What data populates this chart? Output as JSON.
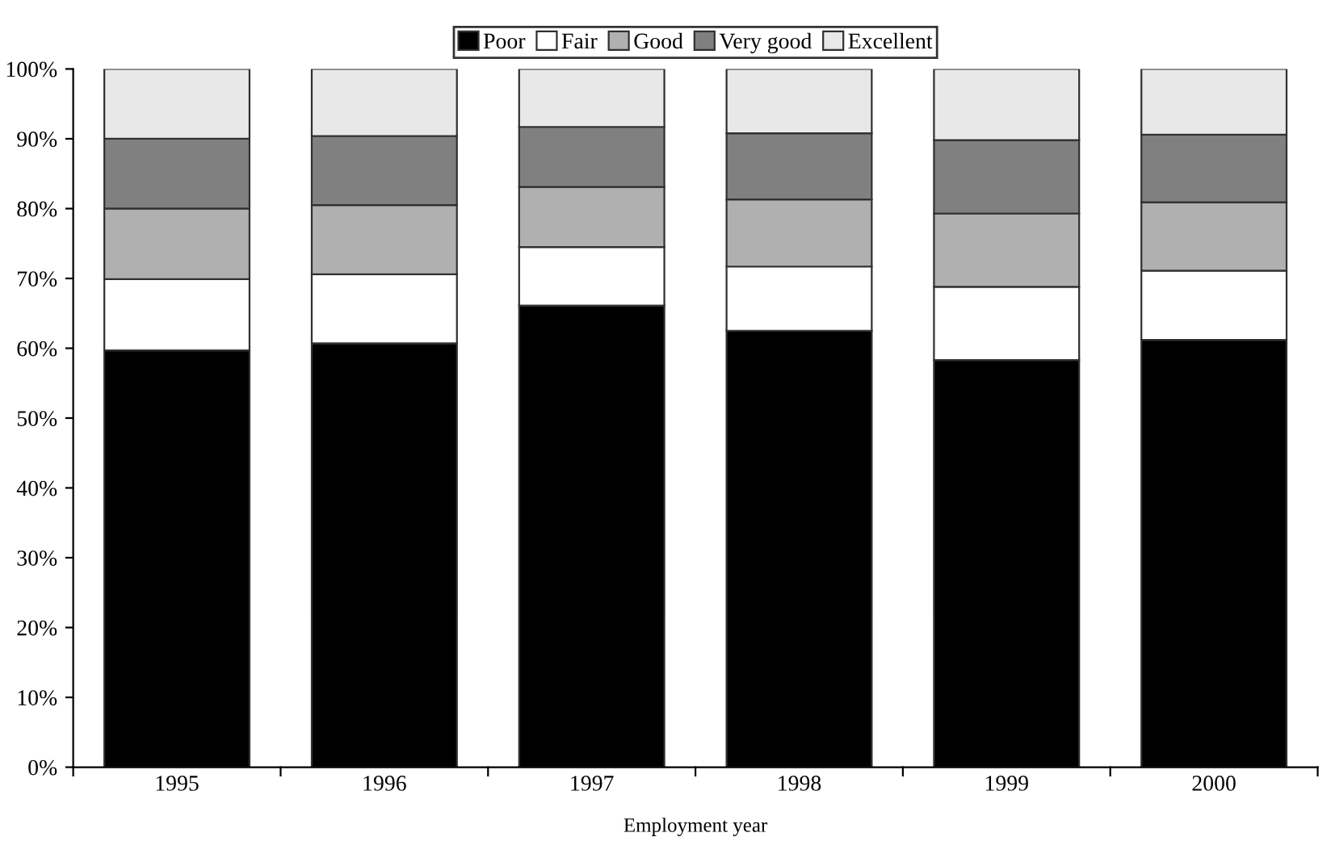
{
  "chart_data": {
    "type": "bar",
    "stacked": true,
    "xlabel": "Employment year",
    "categories": [
      "1995",
      "1996",
      "1997",
      "1998",
      "1999",
      "2000"
    ],
    "series": [
      {
        "name": "Poor",
        "color": "#000000",
        "values": [
          59.7,
          60.7,
          66.1,
          62.5,
          58.3,
          61.2
        ]
      },
      {
        "name": "Fair",
        "color": "#ffffff",
        "values": [
          10.2,
          9.9,
          8.4,
          9.2,
          10.5,
          9.9
        ]
      },
      {
        "name": "Good",
        "color": "#b0b0b0",
        "values": [
          10.1,
          9.9,
          8.6,
          9.6,
          10.5,
          9.8
        ]
      },
      {
        "name": "Very good",
        "color": "#808080",
        "values": [
          10.0,
          9.9,
          8.6,
          9.5,
          10.5,
          9.7
        ]
      },
      {
        "name": "Excellent",
        "color": "#e8e8e8",
        "values": [
          10.0,
          9.6,
          8.3,
          9.2,
          10.2,
          9.4
        ]
      }
    ],
    "ylim": [
      0,
      100
    ],
    "yticks": [
      {
        "value": 0,
        "label": "0%"
      },
      {
        "value": 10,
        "label": "10%"
      },
      {
        "value": 20,
        "label": "20%"
      },
      {
        "value": 30,
        "label": "30%"
      },
      {
        "value": 40,
        "label": "40%"
      },
      {
        "value": 50,
        "label": "50%"
      },
      {
        "value": 60,
        "label": "60%"
      },
      {
        "value": 70,
        "label": "70%"
      },
      {
        "value": 80,
        "label": "80%"
      },
      {
        "value": 90,
        "label": "90%"
      },
      {
        "value": 100,
        "label": "100%"
      }
    ],
    "grid": false,
    "legend": "top"
  }
}
